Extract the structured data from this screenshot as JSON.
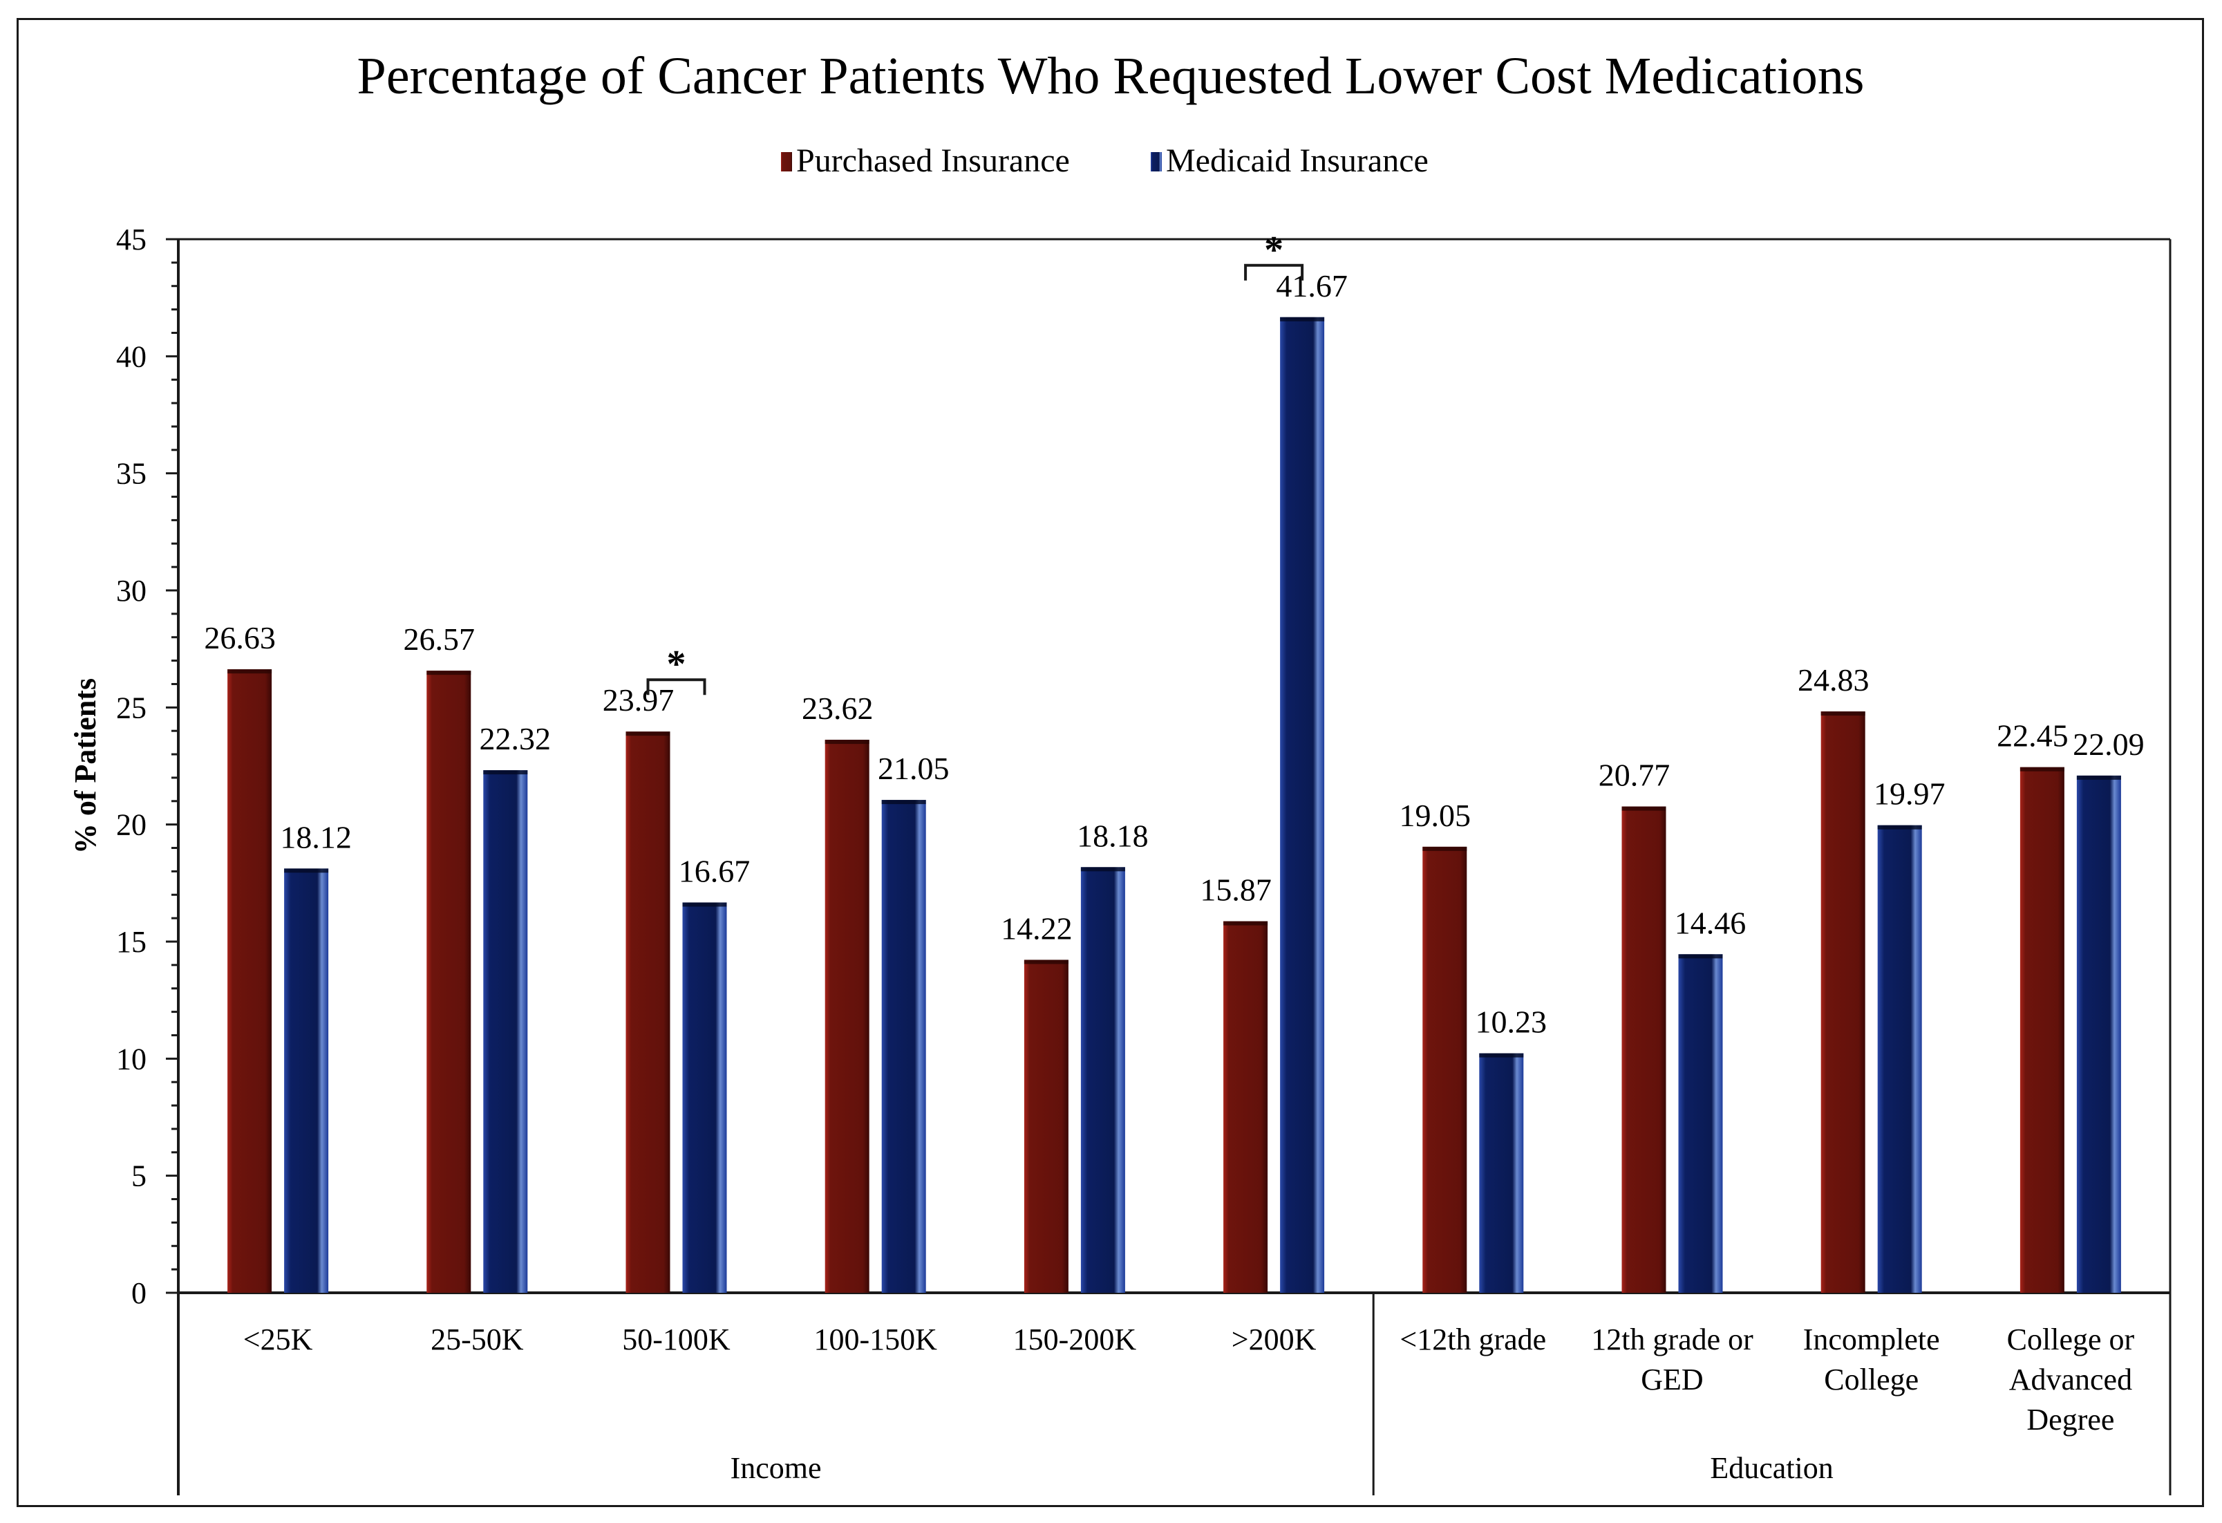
{
  "chart_data": {
    "type": "bar",
    "title": "Percentage of Cancer Patients Who Requested Lower Cost Medications",
    "xlabel": "",
    "ylabel": "% of Patients",
    "ylim": [
      0,
      45
    ],
    "yticks": [
      0,
      5,
      10,
      15,
      20,
      25,
      30,
      35,
      40,
      45
    ],
    "minor_tick_step": 1,
    "grid": false,
    "legend_position": "top-center",
    "categories": [
      "<25K",
      "25-50K",
      "50-100K",
      "100-150K",
      "150-200K",
      ">200K",
      "<12th grade",
      "12th grade or GED",
      "Incomplete College",
      "College or Advanced Degree"
    ],
    "category_display": [
      [
        "<25K"
      ],
      [
        "25-50K"
      ],
      [
        "50-100K"
      ],
      [
        "100-150K"
      ],
      [
        "150-200K"
      ],
      [
        ">200K"
      ],
      [
        "<12th grade"
      ],
      [
        "12th grade or",
        "GED"
      ],
      [
        "Incomplete",
        "College"
      ],
      [
        "College or",
        "Advanced",
        "Degree"
      ]
    ],
    "groups": [
      {
        "name": "Income",
        "categories": [
          "<25K",
          "25-50K",
          "50-100K",
          "100-150K",
          "150-200K",
          ">200K"
        ]
      },
      {
        "name": "Education",
        "categories": [
          "<12th grade",
          "12th grade or GED",
          "Incomplete College",
          "College or Advanced Degree"
        ]
      }
    ],
    "series": [
      {
        "name": "Purchased Insurance",
        "color": "#6a130c",
        "highlight": "#a8231a",
        "values": [
          26.63,
          26.57,
          23.97,
          23.62,
          14.22,
          15.87,
          19.05,
          20.77,
          24.83,
          22.45
        ],
        "labels": [
          "26.63",
          "26.57",
          "23.97",
          "23.62",
          "14.22",
          "15.87",
          "19.05",
          "20.77",
          "24.83",
          "22.45"
        ]
      },
      {
        "name": "Medicaid Insurance",
        "color": "#0b1b55",
        "highlight": "#5a7fd0",
        "values": [
          18.12,
          22.32,
          16.67,
          21.05,
          18.18,
          41.67,
          10.23,
          14.46,
          19.97,
          22.09
        ],
        "labels": [
          "18.12",
          "22.32",
          "16.67",
          "21.05",
          "18.18",
          "41.67",
          "10.23",
          "14.46",
          "19.97",
          "22.09"
        ]
      }
    ],
    "annotations": [
      {
        "text": "*",
        "category": "50-100K",
        "type": "significance-bracket"
      },
      {
        "text": "*",
        "category": ">200K",
        "type": "significance-bracket"
      }
    ]
  }
}
